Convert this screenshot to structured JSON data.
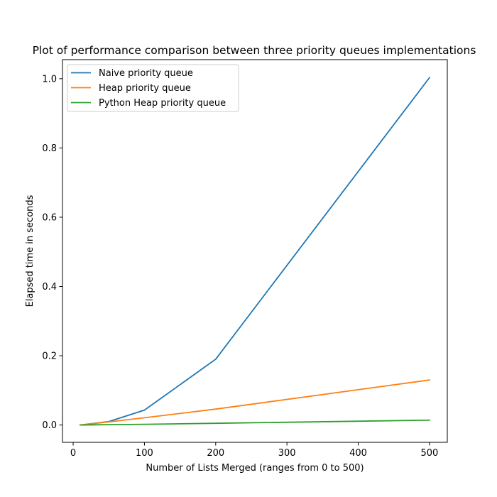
{
  "chart_data": {
    "type": "line",
    "title": "Plot of performance comparison between three priority queues implementations",
    "xlabel": "Number of Lists Merged (ranges from 0 to 500)",
    "ylabel": "Elapsed time in seconds",
    "xlim": [
      -15,
      525
    ],
    "ylim": [
      -0.05,
      1.055
    ],
    "xticks": [
      0,
      100,
      200,
      300,
      400,
      500
    ],
    "xtick_labels": [
      "0",
      "100",
      "200",
      "300",
      "400",
      "500"
    ],
    "yticks": [
      0.0,
      0.2,
      0.4,
      0.6,
      0.8,
      1.0
    ],
    "ytick_labels": [
      "0.0",
      "0.2",
      "0.4",
      "0.6",
      "0.8",
      "1.0"
    ],
    "grid": false,
    "legend_position": "top-left",
    "x": [
      10,
      50,
      100,
      200,
      500
    ],
    "series": [
      {
        "name": "Naive priority queue",
        "color": "#1f77b4",
        "values": [
          0.0,
          0.01,
          0.043,
          0.19,
          1.003
        ]
      },
      {
        "name": "Heap priority queue",
        "color": "#ff7f0e",
        "values": [
          0.0,
          0.009,
          0.021,
          0.046,
          0.13
        ]
      },
      {
        "name": "Python Heap priority queue",
        "color": "#2ca02c",
        "values": [
          0.0,
          0.001,
          0.002,
          0.005,
          0.014
        ]
      }
    ]
  }
}
